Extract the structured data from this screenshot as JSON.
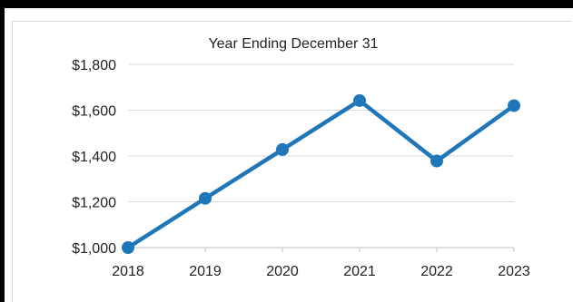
{
  "chart_data": {
    "type": "line",
    "title": "Year Ending December 31",
    "xlabel": "",
    "ylabel": "",
    "categories": [
      "2018",
      "2019",
      "2020",
      "2021",
      "2022",
      "2023"
    ],
    "series": [
      {
        "values": [
          1000,
          1215,
          1428,
          1642,
          1378,
          1620
        ]
      }
    ],
    "ylim": [
      1000,
      1800
    ],
    "yticks": [
      1000,
      1200,
      1400,
      1600,
      1800
    ],
    "ytick_labels": [
      "$1,000",
      "$1,200",
      "$1,400",
      "$1,600",
      "$1,800"
    ],
    "grid": "horizontal",
    "legend": "none",
    "colors": {
      "line": "#1f77b9",
      "grid": "#d9d9d9",
      "axis": "#bfbfbf",
      "text": "#222222"
    }
  }
}
